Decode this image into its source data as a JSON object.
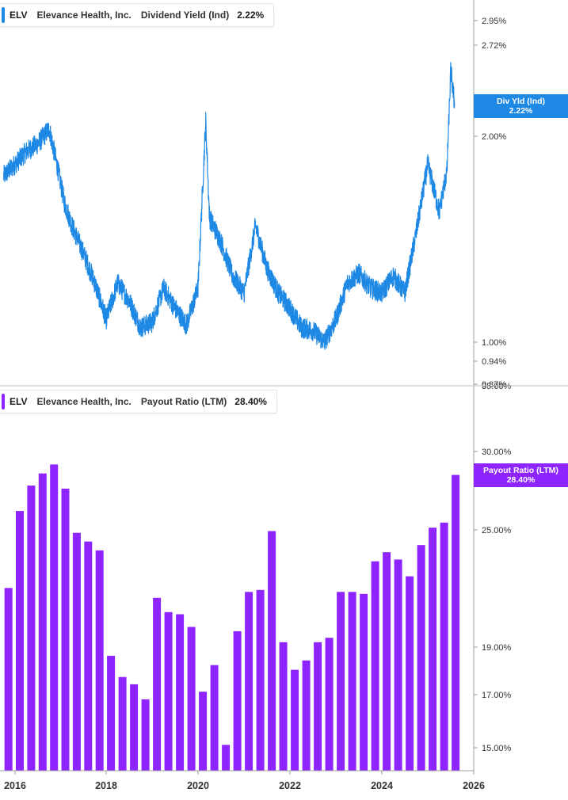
{
  "top_panel": {
    "legend": {
      "ticker": "ELV",
      "company": "Elevance Health, Inc.",
      "metric": "Dividend Yield (Ind)",
      "value": "2.22%"
    },
    "callout": {
      "label": "Div Yld (Ind)",
      "value": "2.22%"
    },
    "axis_ticks": [
      "2.95%",
      "2.72%",
      "2.00%",
      "1.00%",
      "0.94%",
      "0.87%"
    ],
    "color": "#1e88e5"
  },
  "bottom_panel": {
    "legend": {
      "ticker": "ELV",
      "company": "Elevance Health, Inc.",
      "metric": "Payout Ratio (LTM)",
      "value": "28.40%"
    },
    "callout": {
      "label": "Payout Ratio (LTM)",
      "value": "28.40%"
    },
    "axis_ticks": [
      "35.00%",
      "30.00%",
      "25.00%",
      "19.00%",
      "17.00%",
      "15.00%"
    ],
    "color": "#8e24ff"
  },
  "x_axis": {
    "labels": [
      "2016",
      "2018",
      "2020",
      "2022",
      "2024",
      "2026"
    ]
  },
  "chart_data": [
    {
      "type": "line",
      "ylabel": "",
      "y_scale": "log",
      "ylim": [
        0.87,
        2.95
      ],
      "x_range": [
        "2015-10",
        "2026-01"
      ],
      "x": [
        "2015-10",
        "2016-01",
        "2016-04",
        "2016-07",
        "2016-10",
        "2016-12",
        "2017-02",
        "2017-04",
        "2017-07",
        "2017-10",
        "2018-01",
        "2018-04",
        "2018-07",
        "2018-10",
        "2019-01",
        "2019-04",
        "2019-07",
        "2019-10",
        "2020-01",
        "2020-03",
        "2020-04",
        "2020-07",
        "2020-10",
        "2021-01",
        "2021-04",
        "2021-07",
        "2021-10",
        "2022-01",
        "2022-04",
        "2022-07",
        "2022-10",
        "2023-01",
        "2023-04",
        "2023-07",
        "2023-10",
        "2024-01",
        "2024-04",
        "2024-07",
        "2024-10",
        "2025-01",
        "2025-04",
        "2025-06",
        "2025-07",
        "2025-08"
      ],
      "series": [
        {
          "values": [
            1.75,
            1.82,
            1.9,
            1.95,
            2.05,
            1.82,
            1.6,
            1.48,
            1.35,
            1.22,
            1.08,
            1.22,
            1.15,
            1.05,
            1.07,
            1.2,
            1.12,
            1.06,
            1.2,
            2.1,
            1.52,
            1.4,
            1.25,
            1.18,
            1.48,
            1.28,
            1.18,
            1.12,
            1.05,
            1.04,
            1.0,
            1.08,
            1.22,
            1.26,
            1.2,
            1.18,
            1.25,
            1.18,
            1.45,
            1.82,
            1.55,
            1.78,
            2.5,
            2.22
          ]
        }
      ]
    },
    {
      "type": "bar",
      "ylabel": "",
      "y_scale": "log",
      "ylim": [
        14.3,
        35.0
      ],
      "x_range": [
        "2015-10",
        "2026-01"
      ],
      "categories": [
        "2015-Q4",
        "2016-Q1",
        "2016-Q2",
        "2016-Q3",
        "2016-Q4",
        "2017-Q1",
        "2017-Q2",
        "2017-Q3",
        "2017-Q4",
        "2018-Q1",
        "2018-Q2",
        "2018-Q3",
        "2018-Q4",
        "2019-Q1",
        "2019-Q2",
        "2019-Q3",
        "2019-Q4",
        "2020-Q1",
        "2020-Q2",
        "2020-Q3",
        "2020-Q4",
        "2021-Q1",
        "2021-Q2",
        "2021-Q3",
        "2021-Q4",
        "2022-Q1",
        "2022-Q2",
        "2022-Q3",
        "2022-Q4",
        "2023-Q1",
        "2023-Q2",
        "2023-Q3",
        "2023-Q4",
        "2024-Q1",
        "2024-Q2",
        "2024-Q3",
        "2024-Q4",
        "2025-Q1",
        "2025-Q2",
        "2025-Q3"
      ],
      "series": [
        {
          "values": [
            21.8,
            26.1,
            27.7,
            28.5,
            29.1,
            27.5,
            24.8,
            24.3,
            23.8,
            18.6,
            17.7,
            17.4,
            16.8,
            21.3,
            20.6,
            20.5,
            19.9,
            17.1,
            18.2,
            15.1,
            19.7,
            21.6,
            21.7,
            24.9,
            19.2,
            18.0,
            18.4,
            19.2,
            19.4,
            21.6,
            21.6,
            21.5,
            23.2,
            23.7,
            23.3,
            22.4,
            24.1,
            25.1,
            25.4,
            28.4
          ]
        }
      ]
    }
  ]
}
